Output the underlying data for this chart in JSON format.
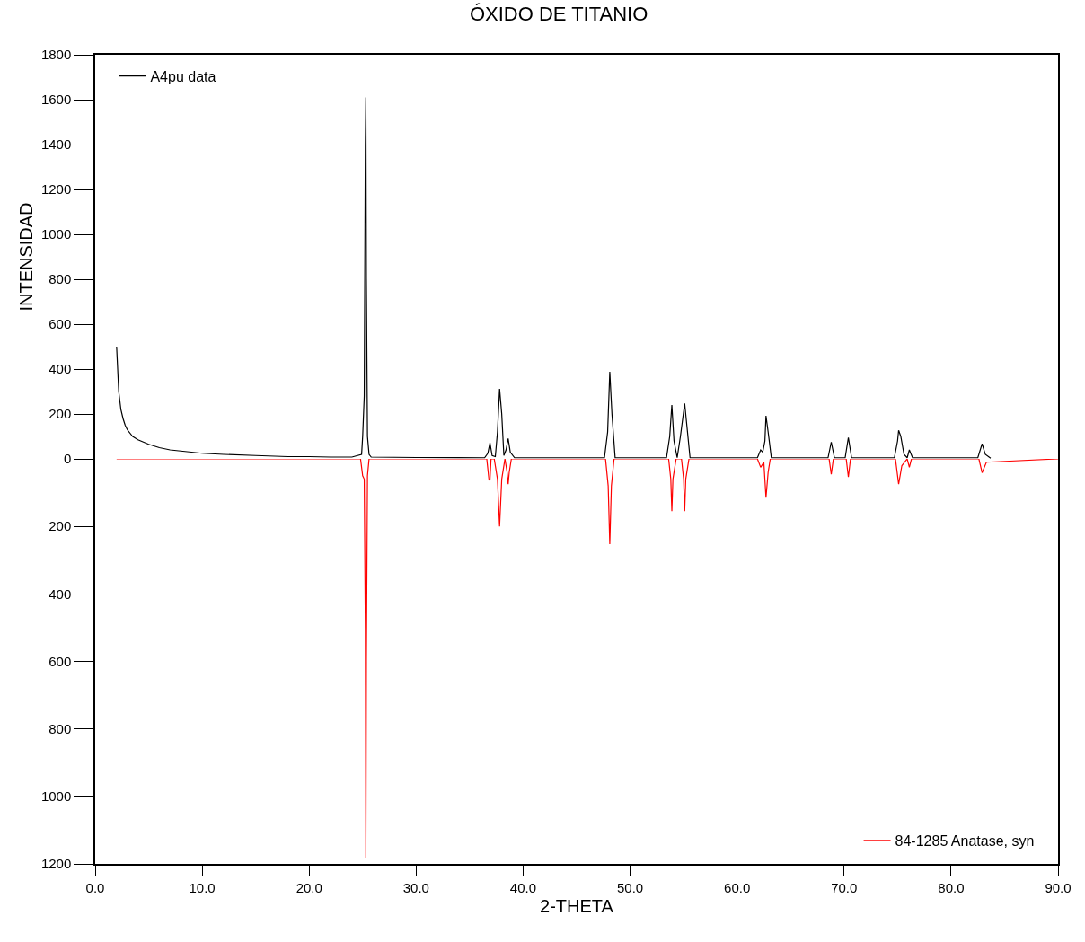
{
  "chart_data": [
    {
      "type": "line",
      "title": "ÓXIDO DE TITANIO",
      "ylabel": "INTENSIDAD",
      "xlim": [
        0,
        90
      ],
      "ylim": [
        0,
        1800
      ],
      "yticks": [
        0,
        200,
        400,
        600,
        800,
        1000,
        1200,
        1400,
        1600,
        1800
      ],
      "tick_labels": "y",
      "legend": "top left",
      "series": [
        {
          "name": "A4pu data",
          "color": "#000000",
          "x": [
            2.0,
            2.1,
            2.2,
            2.4,
            2.6,
            2.8,
            3.0,
            3.5,
            4.0,
            5.0,
            6.0,
            7.0,
            8.0,
            10.0,
            12.0,
            15.0,
            18.0,
            20.0,
            22.0,
            24.0,
            24.9,
            25.0,
            25.15,
            25.25,
            25.3,
            25.35,
            25.45,
            25.6,
            25.8,
            30.0,
            36.4,
            36.7,
            36.9,
            37.1,
            37.4,
            37.6,
            37.8,
            38.0,
            38.2,
            38.4,
            38.6,
            38.8,
            39.2,
            47.6,
            47.9,
            48.1,
            48.3,
            48.6,
            53.4,
            53.7,
            53.9,
            54.1,
            54.4,
            54.7,
            55.1,
            55.3,
            55.6,
            61.9,
            62.2,
            62.4,
            62.6,
            62.7,
            62.9,
            63.2,
            68.5,
            68.8,
            69.1,
            70.1,
            70.4,
            70.7,
            74.7,
            75.0,
            75.1,
            75.3,
            75.6,
            75.9,
            76.1,
            76.4,
            82.5,
            82.9,
            83.2,
            83.7
          ],
          "values": [
            500,
            400,
            300,
            220,
            180,
            150,
            130,
            100,
            85,
            65,
            50,
            40,
            35,
            25,
            20,
            15,
            10,
            10,
            8,
            8,
            20,
            100,
            280,
            1400,
            1610,
            800,
            100,
            20,
            8,
            6,
            5,
            25,
            72,
            15,
            10,
            120,
            312,
            200,
            15,
            40,
            91,
            30,
            5,
            5,
            120,
            388,
            200,
            5,
            5,
            100,
            240,
            80,
            5,
            100,
            247,
            150,
            5,
            5,
            40,
            30,
            80,
            192,
            120,
            5,
            5,
            75,
            5,
            5,
            95,
            5,
            5,
            80,
            127,
            100,
            20,
            5,
            40,
            5,
            5,
            67,
            20,
            3
          ]
        }
      ]
    },
    {
      "type": "line",
      "xlabel": "2-THETA",
      "xlim": [
        0,
        90
      ],
      "ylim": [
        1200,
        0
      ],
      "xticks": [
        {
          "value": 0,
          "label": "0.0"
        },
        {
          "value": 10,
          "label": "10.0"
        },
        {
          "value": 20,
          "label": "20.0"
        },
        {
          "value": 30,
          "label": "30.0"
        },
        {
          "value": 40,
          "label": "40.0"
        },
        {
          "value": 50,
          "label": "50.0"
        },
        {
          "value": 60,
          "label": "60.0"
        },
        {
          "value": 70,
          "label": "70.0"
        },
        {
          "value": 80,
          "label": "80.0"
        },
        {
          "value": 90,
          "label": "90.0"
        }
      ],
      "yticks": [
        200,
        400,
        600,
        800,
        1000,
        1200
      ],
      "legend": "bottom right",
      "series": [
        {
          "name": "84-1285 Anatase, syn",
          "color": "#ff0000",
          "x": [
            2.0,
            24.8,
            25.0,
            25.15,
            25.25,
            25.3,
            25.35,
            25.45,
            25.6,
            36.6,
            36.8,
            36.9,
            37.0,
            37.3,
            37.6,
            37.8,
            38.0,
            38.3,
            38.5,
            38.6,
            38.7,
            38.9,
            47.7,
            47.95,
            48.1,
            48.25,
            48.5,
            53.6,
            53.8,
            53.9,
            54.0,
            54.3,
            54.8,
            55.0,
            55.1,
            55.2,
            55.5,
            61.9,
            62.2,
            62.5,
            62.7,
            62.9,
            63.1,
            68.6,
            68.8,
            69.0,
            70.2,
            70.4,
            70.6,
            74.8,
            75.1,
            75.4,
            75.9,
            76.1,
            76.3,
            82.6,
            82.9,
            83.3,
            90.0
          ],
          "values": [
            0,
            0,
            50,
            60,
            500,
            1184,
            600,
            50,
            0,
            0,
            60,
            64,
            0,
            0,
            60,
            200,
            60,
            0,
            40,
            75,
            40,
            0,
            0,
            80,
            253,
            80,
            0,
            0,
            60,
            155,
            60,
            0,
            0,
            60,
            155,
            60,
            0,
            0,
            25,
            10,
            115,
            40,
            0,
            0,
            46,
            0,
            0,
            54,
            0,
            0,
            75,
            20,
            0,
            25,
            0,
            0,
            41,
            10,
            0
          ]
        }
      ]
    }
  ]
}
